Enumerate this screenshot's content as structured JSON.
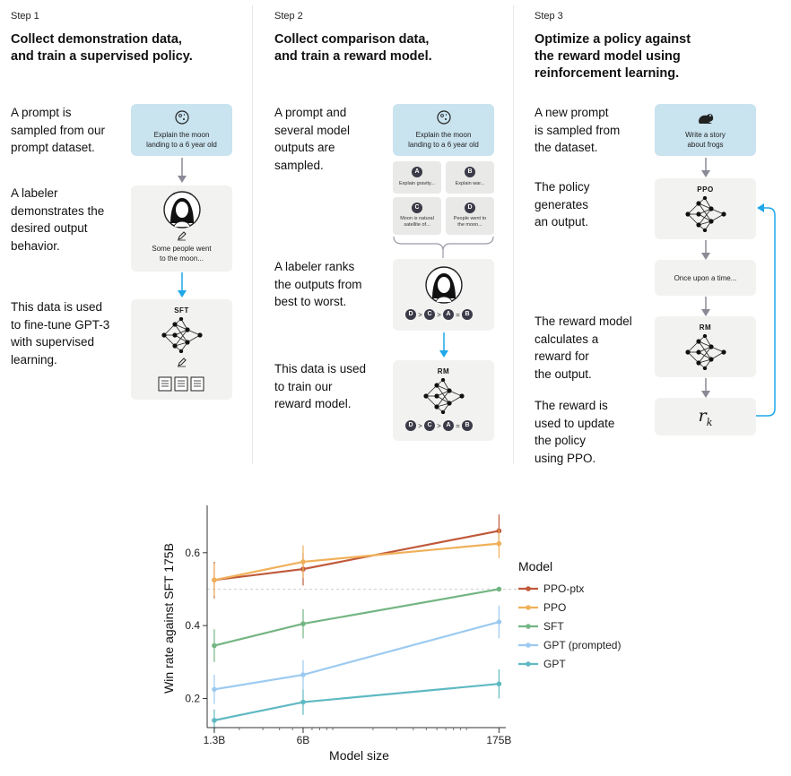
{
  "steps": [
    {
      "label": "Step 1",
      "title": "Collect demonstration data,\nand train a supervised policy.",
      "descriptions": [
        "A prompt is\nsampled from our\nprompt dataset.",
        "A labeler\ndemonstrates the\ndesired output\nbehavior.",
        "This data is used\nto fine-tune GPT-3\nwith supervised\nlearning."
      ],
      "prompt": "Explain the moon\nlanding to a 6 year old",
      "labeler_output": "Some people went\nto the moon...",
      "model": "SFT"
    },
    {
      "label": "Step 2",
      "title": "Collect comparison data,\nand train a reward model.",
      "descriptions": [
        "A prompt and\nseveral model\noutputs are\nsampled.",
        "A labeler ranks\nthe outputs from\nbest to worst.",
        "This data is used\nto train our\nreward model."
      ],
      "prompt": "Explain the moon\nlanding to a 6 year old",
      "outputs": [
        {
          "letter": "A",
          "text": "Explain gravity..."
        },
        {
          "letter": "B",
          "text": "Explain war..."
        },
        {
          "letter": "C",
          "text": "Moon is natural\nsatellite of..."
        },
        {
          "letter": "D",
          "text": "People went to\nthe moon..."
        }
      ],
      "ranking": [
        "D",
        ">",
        "C",
        ">",
        "A",
        "=",
        "B"
      ],
      "model": "RM"
    },
    {
      "label": "Step 3",
      "title": "Optimize a policy against\nthe reward model using\nreinforcement learning.",
      "descriptions": [
        "A new prompt\nis sampled from\nthe dataset.",
        "The policy\ngenerates\nan output.",
        "The reward model\ncalculates a\nreward for\nthe output.",
        "The reward is\nused to update\nthe policy\nusing PPO."
      ],
      "prompt": "Write a story\nabout frogs",
      "policy": "PPO",
      "output": "Once upon a time...",
      "model": "RM",
      "reward": "r",
      "reward_sub": "k"
    }
  ],
  "chart_data": {
    "type": "line",
    "xlabel": "Model size",
    "ylabel": "Win rate against SFT 175B",
    "x_categories": [
      "1.3B",
      "6B",
      "175B"
    ],
    "x_log": true,
    "yticks": [
      "0.2",
      "0.4",
      "0.6"
    ],
    "ylim": [
      0.12,
      0.72
    ],
    "reference_line": 0.5,
    "legend_title": "Model",
    "legend_position": "right",
    "series": [
      {
        "name": "PPO-ptx",
        "color": "#c0593a",
        "values": [
          0.525,
          0.555,
          0.66
        ],
        "err": [
          0.05,
          0.045,
          0.045
        ]
      },
      {
        "name": "PPO",
        "color": "#f0b05a",
        "values": [
          0.525,
          0.575,
          0.625
        ],
        "err": [
          0.045,
          0.045,
          0.04
        ]
      },
      {
        "name": "SFT",
        "color": "#74b583",
        "values": [
          0.345,
          0.405,
          0.5
        ],
        "err": [
          0.045,
          0.04,
          0.0
        ]
      },
      {
        "name": "GPT (prompted)",
        "color": "#9ccaf0",
        "values": [
          0.225,
          0.265,
          0.41
        ],
        "err": [
          0.04,
          0.04,
          0.045
        ]
      },
      {
        "name": "GPT",
        "color": "#5fb9c2",
        "values": [
          0.14,
          0.19,
          0.24
        ],
        "err": [
          0.03,
          0.035,
          0.04
        ]
      }
    ]
  }
}
